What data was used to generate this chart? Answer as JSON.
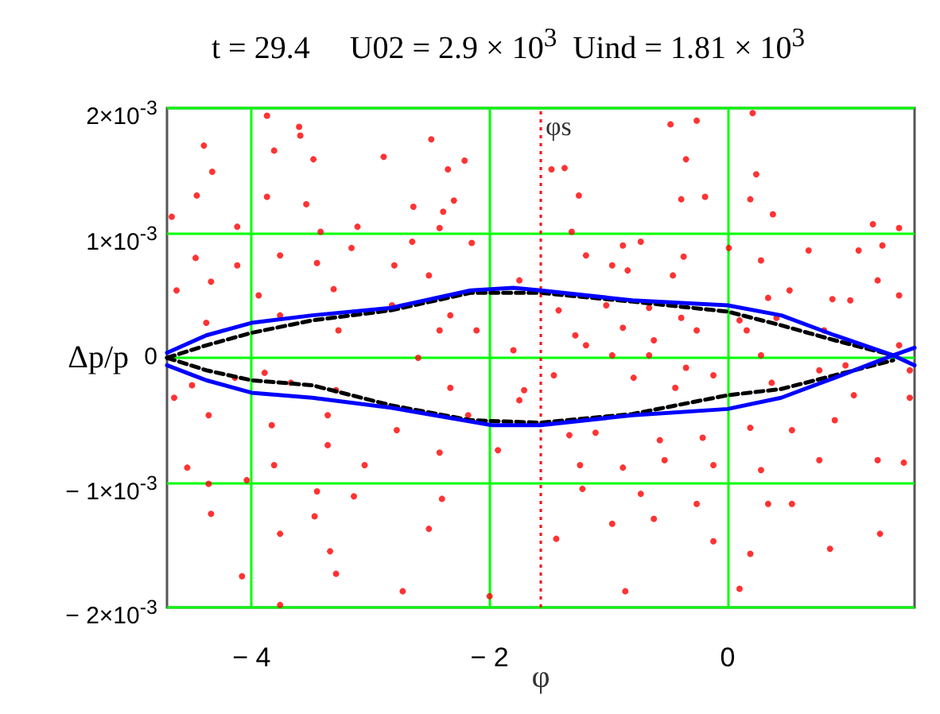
{
  "chart_data": {
    "type": "scatter",
    "title": "t = 29.4     U02 = 2.9 × 10$^{3}$  Uind = 1.81 × 10$^{3}$",
    "xlabel": "φ",
    "ylabel": "Δp/p",
    "xlim": [
      -4.71,
      1.57
    ],
    "xticks": [
      {
        "value": -4,
        "label": "− 4"
      },
      {
        "value": -2,
        "label": "− 2"
      },
      0
    ],
    "ylim": [
      -0.002,
      0.002
    ],
    "yticks": [
      {
        "value": -0.002,
        "label": "− 2×10$^{-3}$"
      },
      {
        "value": -0.001,
        "label": "− 1×10$^{-3}$"
      },
      0,
      {
        "value": 0.001,
        "label": "1×10$^{-3}$"
      },
      {
        "value": 0.002,
        "label": "2×10$^{-3}$"
      }
    ],
    "grid": true,
    "ref_lines": [
      {
        "axis": "x",
        "value": -1.57,
        "label": "φs",
        "color": "#ff0000",
        "line_style": "dotted"
      }
    ],
    "series": [
      {
        "type": "scatter",
        "color": "#ff0000",
        "marker": "circle",
        "x": [
          -3.87,
          -3.6,
          -3.59,
          -4.4,
          -3.81,
          -3.48,
          -2.89,
          -2.49,
          -2.21,
          -2.35,
          -4.33,
          -4.46,
          -3.87,
          -3.54,
          -2.64,
          -2.3,
          -2.39,
          -4.67,
          -4.12,
          -3.42,
          -3.11,
          -2.42,
          -4.47,
          -4.34,
          -4.12,
          -3.76,
          -3.45,
          -3.16,
          -2.8,
          -2.65,
          -2.15,
          -2.51,
          -1.75,
          -4.63,
          -3.94,
          -3.31,
          -2.82,
          -2.33,
          -4.38,
          -3.76,
          -3.27,
          -2.42,
          -2.11,
          -1.8,
          -4.65,
          -4.5,
          -4.14,
          -3.89,
          -3.67,
          -3.29,
          -2.6,
          -2.33,
          -1.71,
          -4.36,
          -3.83,
          -3.36,
          -2.78,
          -2.18,
          -1.75,
          -4.54,
          -4.36,
          -4.04,
          -3.81,
          -3.36,
          -3.05,
          -2.42,
          -1.93,
          -3.45,
          -3.14,
          -2.4,
          -4.34,
          -3.76,
          -3.47,
          -3.34,
          -2.51,
          -4.08,
          -3.29,
          -3.76,
          -2.73,
          -2.0,
          -0.48,
          -0.26,
          0.21,
          -0.35,
          0.24,
          -1.25,
          -0.39,
          -0.19,
          0.19,
          0.38,
          1.22,
          1.44,
          -1.48,
          -1.37,
          -1.31,
          -0.88,
          -0.73,
          -0.37,
          -1.19,
          0.01,
          0.28,
          0.68,
          1.1,
          1.3,
          -0.97,
          -0.46,
          -0.84,
          0.52,
          0.34,
          0.88,
          1.26,
          1.44,
          -1.42,
          -1.02,
          -0.66,
          -0.39,
          0.1,
          0.41,
          1.03,
          -1.28,
          -0.88,
          -0.62,
          -0.26,
          0.16,
          0.81,
          -1.19,
          -0.97,
          -0.66,
          -0.35,
          0.28,
          0.99,
          1.44,
          1.53,
          -1.46,
          -0.79,
          -0.44,
          -0.12,
          0.37,
          0.77,
          1.06,
          1.53,
          -1.33,
          -1.11,
          -0.57,
          -0.21,
          0.19,
          0.54,
          0.9,
          -1.24,
          -0.88,
          -0.53,
          -0.12,
          0.28,
          0.77,
          1.26,
          1.48,
          -1.22,
          -0.73,
          -0.26,
          0.34,
          0.54,
          -0.97,
          -0.62,
          -0.12,
          0.19,
          0.86,
          1.28,
          -0.86,
          0.1,
          -1.44
        ],
        "values": [
          0.00194,
          0.00185,
          0.00178,
          0.0017,
          0.00166,
          0.00159,
          0.00161,
          0.00175,
          0.00158,
          0.00151,
          0.00149,
          0.0013,
          0.00129,
          0.00123,
          0.00121,
          0.00126,
          0.00117,
          0.00113,
          0.00105,
          0.00101,
          0.00105,
          0.00104,
          0.0008,
          0.00061,
          0.00074,
          0.00082,
          0.00076,
          0.00088,
          0.00074,
          0.00093,
          0.00092,
          0.00066,
          0.00062,
          0.00054,
          0.0005,
          0.00055,
          0.00042,
          0.00034,
          0.00028,
          0.00034,
          0.00022,
          0.00022,
          0.00022,
          6e-05,
          -0.00032,
          -0.00022,
          -0.00016,
          -0.00012,
          -0.0002,
          -0.00026,
          0,
          -0.00024,
          -0.00026,
          -0.00046,
          -0.00054,
          -0.00046,
          -0.00058,
          -0.00046,
          -0.00034,
          -0.00088,
          -0.00101,
          -0.00098,
          -0.00086,
          -0.0007,
          -0.00086,
          -0.00076,
          -0.00074,
          -0.00107,
          -0.00111,
          -0.00113,
          -0.00125,
          -0.00141,
          -0.00127,
          -0.00155,
          -0.00137,
          -0.00175,
          -0.00173,
          -0.00198,
          -0.00187,
          -0.00191,
          0.00187,
          0.0019,
          0.00196,
          0.00159,
          0.00147,
          0.0013,
          0.00127,
          0.00129,
          0.00127,
          0.00115,
          0.00107,
          0.00104,
          0.00151,
          0.00152,
          0.00101,
          0.0009,
          0.00093,
          0.00081,
          0.00082,
          0.00088,
          0.00078,
          0.00086,
          0.00086,
          0.0009,
          0.00074,
          0.00066,
          0.0007,
          0.00054,
          0.00048,
          0.00047,
          0.00062,
          0.0005,
          0.00038,
          0.00042,
          0.0004,
          0.00032,
          0.0003,
          0.00032,
          0.00046,
          0.00018,
          0.00024,
          0.00014,
          0.00022,
          0.00022,
          0.00022,
          0.0001,
          2e-05,
          2e-05,
          -8e-05,
          2e-05,
          -6e-05,
          0.0001,
          -0.0001,
          -0.00014,
          -0.00016,
          -0.00024,
          -0.00014,
          -0.0002,
          -0.0001,
          -0.0003,
          -0.00032,
          -0.00062,
          -0.0006,
          -0.00066,
          -0.00064,
          -0.00056,
          -0.00058,
          -0.0005,
          -0.00086,
          -0.00088,
          -0.00082,
          -0.00086,
          -0.0009,
          -0.00082,
          -0.00082,
          -0.00084,
          -0.00105,
          -0.00109,
          -0.00117,
          -0.00117,
          -0.00117,
          -0.00133,
          -0.00129,
          -0.00147,
          -0.00157,
          -0.00153,
          -0.00141,
          -0.00187,
          -0.00185,
          -0.00145
        ]
      },
      {
        "type": "line",
        "color": "#000000",
        "marker": "none",
        "line_style": "dashed",
        "x": [
          -4.71,
          -4.38,
          -4.0,
          -3.49,
          -2.83,
          -2.16,
          -1.57,
          -0.8,
          0,
          0.45,
          0.9,
          1.39
        ],
        "values": [
          0,
          0.0001,
          0.0002,
          0.0003,
          0.00038,
          0.00052,
          0.00052,
          0.00045,
          0.00037,
          0.00026,
          0.00014,
          2e-05
        ]
      },
      {
        "type": "line",
        "color": "#000000",
        "marker": "none",
        "line_style": "dashed",
        "x": [
          -4.71,
          -4.38,
          -4.0,
          -3.49,
          -2.83,
          -2.16,
          -1.57,
          -0.8,
          0,
          0.45,
          0.9,
          1.39
        ],
        "values": [
          0,
          -0.0001,
          -0.00018,
          -0.00022,
          -0.00038,
          -0.0005,
          -0.00052,
          -0.00045,
          -0.0003,
          -0.00025,
          -0.00014,
          -2e-05
        ]
      },
      {
        "type": "line",
        "color": "#0000ff",
        "marker": "none",
        "line_style": "solid",
        "x": [
          -4.71,
          -4.38,
          -4.0,
          -3.49,
          -2.83,
          -2.16,
          -1.8,
          -1.57,
          -0.8,
          0,
          0.45,
          0.9,
          1.39,
          1.57
        ],
        "values": [
          4e-05,
          0.00018,
          0.00028,
          0.00034,
          0.0004,
          0.00054,
          0.00056,
          0.00054,
          0.00046,
          0.00042,
          0.00034,
          0.00018,
          2e-05,
          -6e-05
        ]
      },
      {
        "type": "line",
        "color": "#0000ff",
        "marker": "none",
        "line_style": "solid",
        "x": [
          -4.71,
          -4.38,
          -4.0,
          -3.49,
          -2.83,
          -1.98,
          -1.57,
          -0.8,
          0,
          0.45,
          0.9,
          1.39,
          1.57
        ],
        "values": [
          -6e-05,
          -0.00018,
          -0.00028,
          -0.00032,
          -0.0004,
          -0.00054,
          -0.00054,
          -0.00046,
          -0.00041,
          -0.00032,
          -0.00016,
          2e-05,
          8e-05
        ]
      }
    ]
  }
}
